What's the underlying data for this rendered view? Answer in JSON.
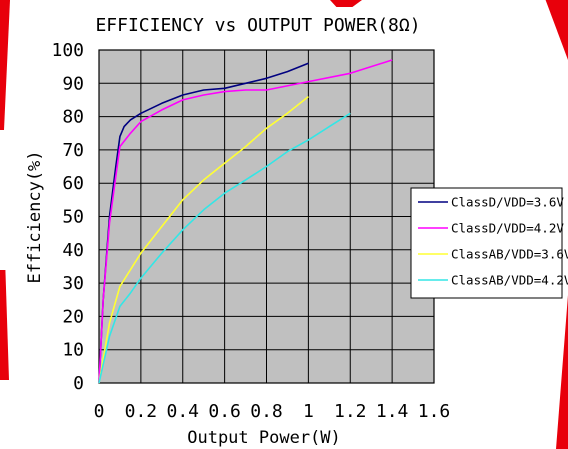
{
  "chart_data": {
    "type": "line",
    "title": "EFFICIENCY vs OUTPUT POWER(8Ω)",
    "xlabel": "Output Power(W)",
    "ylabel": "Efficiency(%)",
    "xlim": [
      0,
      1.6
    ],
    "ylim": [
      0,
      100
    ],
    "x_ticks": [
      "0",
      "0.2",
      "0.4",
      "0.6",
      "0.8",
      "1",
      "1.2",
      "1.4",
      "1.6"
    ],
    "y_ticks": [
      "0",
      "10",
      "20",
      "30",
      "40",
      "50",
      "60",
      "70",
      "80",
      "90",
      "100"
    ],
    "grid": true,
    "legend_position": "right",
    "plot_background": "#c0c0c0",
    "series": [
      {
        "name": "ClassD/VDD=3.6V",
        "color": "#000080",
        "points": [
          [
            0,
            0
          ],
          [
            0.02,
            25
          ],
          [
            0.05,
            50
          ],
          [
            0.08,
            65
          ],
          [
            0.1,
            74
          ],
          [
            0.12,
            77
          ],
          [
            0.15,
            79
          ],
          [
            0.2,
            81
          ],
          [
            0.3,
            84
          ],
          [
            0.4,
            86.5
          ],
          [
            0.5,
            88
          ],
          [
            0.6,
            88.5
          ],
          [
            0.7,
            90
          ],
          [
            0.8,
            91.5
          ],
          [
            0.9,
            93.5
          ],
          [
            1.0,
            96
          ]
        ]
      },
      {
        "name": "ClassD/VDD=4.2V",
        "color": "#ff00ff",
        "points": [
          [
            0,
            0
          ],
          [
            0.02,
            25
          ],
          [
            0.05,
            48
          ],
          [
            0.08,
            62
          ],
          [
            0.1,
            71
          ],
          [
            0.15,
            75
          ],
          [
            0.2,
            78.5
          ],
          [
            0.3,
            82
          ],
          [
            0.4,
            85
          ],
          [
            0.5,
            86.5
          ],
          [
            0.6,
            87.5
          ],
          [
            0.7,
            88
          ],
          [
            0.8,
            88
          ],
          [
            1.0,
            90.5
          ],
          [
            1.2,
            93
          ],
          [
            1.4,
            97
          ]
        ]
      },
      {
        "name": "ClassAB/VDD=3.6V",
        "color": "#ffff33",
        "points": [
          [
            0,
            0
          ],
          [
            0.05,
            18
          ],
          [
            0.1,
            29
          ],
          [
            0.15,
            34
          ],
          [
            0.2,
            39
          ],
          [
            0.3,
            47
          ],
          [
            0.4,
            55
          ],
          [
            0.5,
            61
          ],
          [
            0.6,
            66
          ],
          [
            0.7,
            71
          ],
          [
            0.8,
            76.5
          ],
          [
            0.9,
            81
          ],
          [
            1.0,
            86
          ]
        ]
      },
      {
        "name": "ClassAB/VDD=4.2V",
        "color": "#33e6e6",
        "points": [
          [
            0,
            0
          ],
          [
            0.05,
            14
          ],
          [
            0.1,
            23
          ],
          [
            0.15,
            27
          ],
          [
            0.2,
            31.5
          ],
          [
            0.3,
            39
          ],
          [
            0.4,
            46
          ],
          [
            0.5,
            52
          ],
          [
            0.6,
            57
          ],
          [
            0.7,
            61
          ],
          [
            0.8,
            65
          ],
          [
            0.9,
            69.5
          ],
          [
            1.0,
            73
          ],
          [
            1.1,
            77
          ],
          [
            1.2,
            81
          ]
        ]
      }
    ]
  }
}
